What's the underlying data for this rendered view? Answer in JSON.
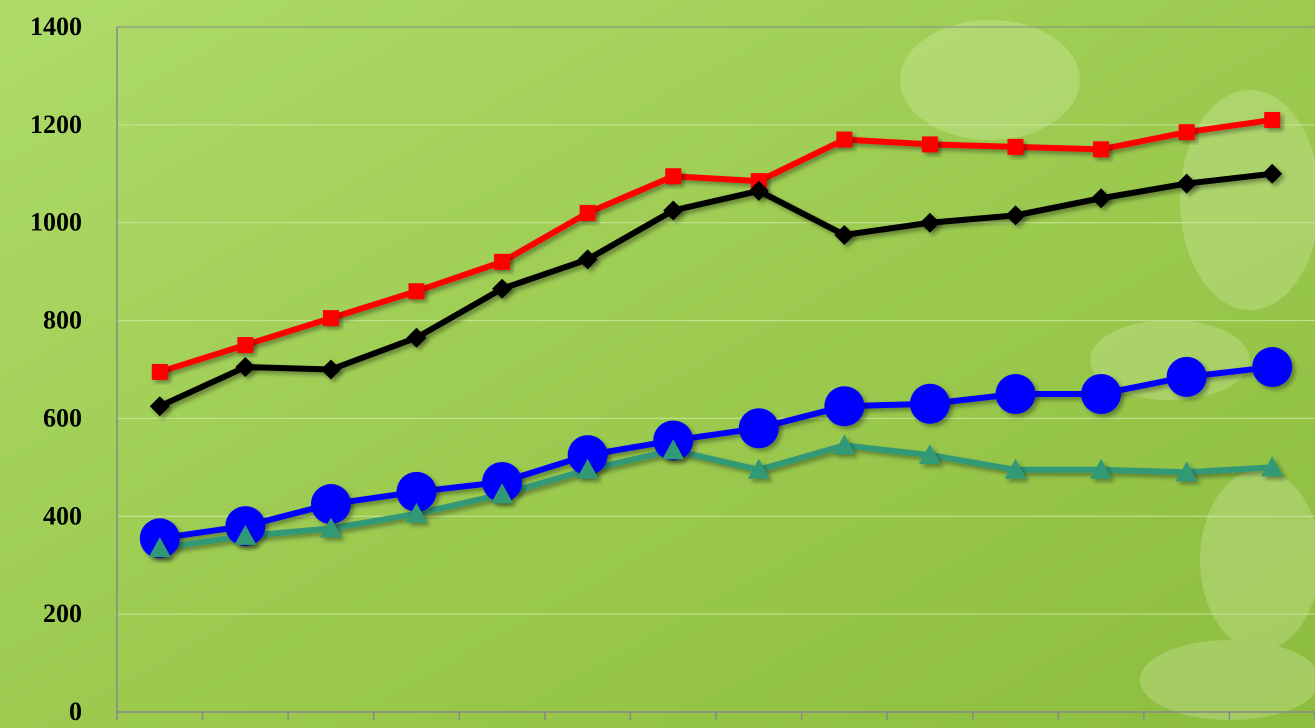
{
  "chart_data": {
    "type": "line",
    "categories": [
      null,
      null,
      null,
      null,
      null,
      null,
      null,
      null,
      null,
      null,
      null,
      null,
      null,
      null
    ],
    "series": [
      {
        "color": "#ff0000",
        "marker": "square",
        "values": [
          695,
          750,
          805,
          860,
          920,
          1020,
          1095,
          1085,
          1170,
          1160,
          1155,
          1150,
          1185,
          1210
        ]
      },
      {
        "color": "#000000",
        "marker": "diamond",
        "values": [
          625,
          705,
          700,
          765,
          865,
          925,
          1025,
          1065,
          975,
          1000,
          1015,
          1050,
          1080,
          1100
        ]
      },
      {
        "color": "#0000ff",
        "marker": "circle",
        "values": [
          355,
          380,
          425,
          450,
          470,
          525,
          555,
          580,
          625,
          630,
          650,
          650,
          685,
          705
        ]
      },
      {
        "color": "#339977",
        "marker": "triangle",
        "values": [
          335,
          360,
          375,
          405,
          445,
          495,
          535,
          495,
          545,
          525,
          495,
          495,
          490,
          500
        ]
      }
    ],
    "ylim": [
      0,
      1400
    ],
    "yticks": [
      0,
      200,
      400,
      600,
      800,
      1000,
      1200,
      1400
    ],
    "grid": true
  }
}
